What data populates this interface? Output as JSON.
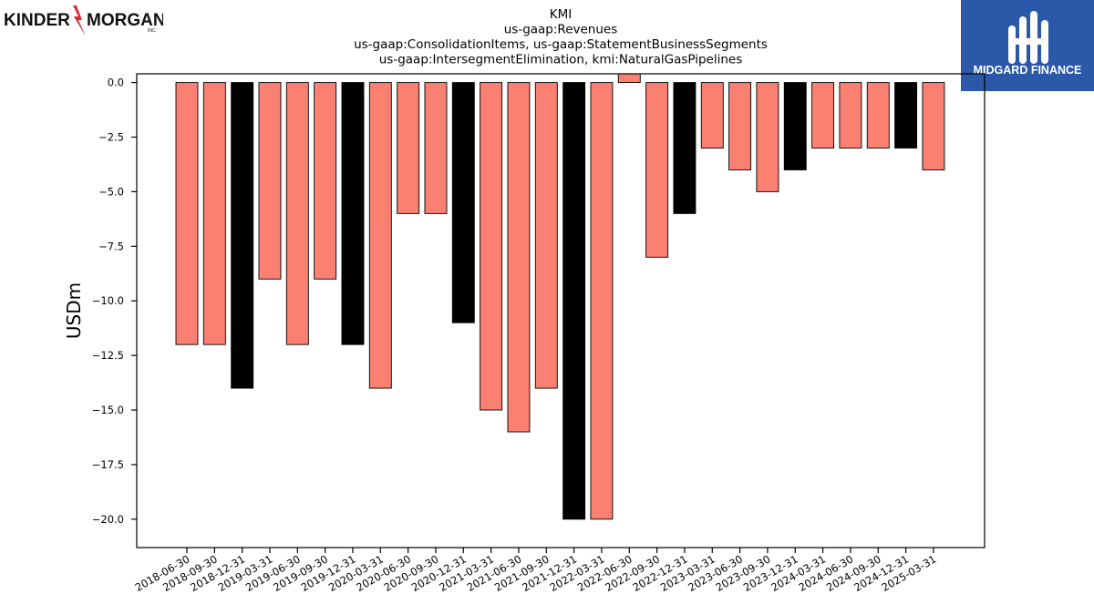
{
  "logos": {
    "left": {
      "text_a": "KINDER",
      "text_b": "MORGAN",
      "suffix": "INC.",
      "icon": "lightning-bolt-icon"
    },
    "right": {
      "text": "MIDGARD FINANCE",
      "icon": "midgard-monogram-icon",
      "bg": "#2b58a8"
    }
  },
  "chart_data": {
    "type": "bar",
    "title_lines": [
      "KMI",
      "us-gaap:Revenues",
      "us-gaap:ConsolidationItems, us-gaap:StatementBusinessSegments",
      "us-gaap:IntersegmentElimination, kmi:NaturalGasPipelines"
    ],
    "ylabel": "USDm",
    "xlabel": "",
    "ylim": [
      -21.3,
      0.4
    ],
    "yticks": [
      0.0,
      -2.5,
      -5.0,
      -7.5,
      -10.0,
      -12.5,
      -15.0,
      -17.5,
      -20.0
    ],
    "ytick_labels": [
      "0.0",
      "−2.5",
      "−5.0",
      "−7.5",
      "−10.0",
      "−12.5",
      "−15.0",
      "−17.5",
      "−20.0"
    ],
    "categories": [
      "2018-06-30",
      "2018-09-30",
      "2018-12-31",
      "2019-03-31",
      "2019-06-30",
      "2019-09-30",
      "2019-12-31",
      "2020-03-31",
      "2020-06-30",
      "2020-09-30",
      "2020-12-31",
      "2021-03-31",
      "2021-06-30",
      "2021-09-30",
      "2021-12-31",
      "2022-03-31",
      "2022-06-30",
      "2022-09-30",
      "2022-12-31",
      "2023-03-31",
      "2023-06-30",
      "2023-09-30",
      "2023-12-31",
      "2024-03-31",
      "2024-06-30",
      "2024-09-30",
      "2024-12-31",
      "2025-03-31"
    ],
    "values": [
      -12,
      -12,
      -14,
      -9,
      -12,
      -9,
      -12,
      -14,
      -6,
      -6,
      -11,
      -15,
      -16,
      -14,
      -20,
      -20,
      0.4,
      -8,
      -6,
      -3,
      -4,
      -5,
      -4,
      -3,
      -3,
      -3,
      -3,
      -4
    ],
    "colors": [
      "salmon",
      "salmon",
      "black",
      "salmon",
      "salmon",
      "salmon",
      "black",
      "salmon",
      "salmon",
      "salmon",
      "black",
      "salmon",
      "salmon",
      "salmon",
      "black",
      "salmon",
      "salmon",
      "salmon",
      "black",
      "salmon",
      "salmon",
      "salmon",
      "black",
      "salmon",
      "salmon",
      "salmon",
      "black",
      "salmon"
    ],
    "palette": {
      "salmon": "#fa8072",
      "black": "#000000"
    },
    "grid": false,
    "legend": "none"
  }
}
